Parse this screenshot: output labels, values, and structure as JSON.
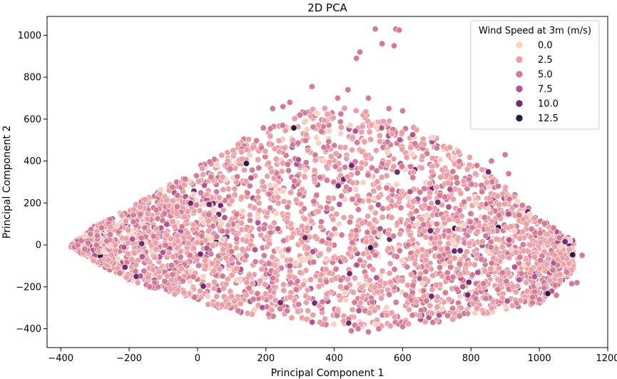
{
  "chart_data": {
    "type": "scatter",
    "title": "2D PCA",
    "xlabel": "Principal Component 1",
    "ylabel": "Principal Component 2",
    "xlim": [
      -440,
      1200
    ],
    "ylim": [
      -490,
      1090
    ],
    "x_ticks": [
      -400,
      -200,
      0,
      200,
      400,
      600,
      800,
      1000,
      1200
    ],
    "y_ticks": [
      -400,
      -200,
      0,
      200,
      400,
      600,
      800,
      1000
    ],
    "x_tick_labels": [
      "−400",
      "−200",
      "0",
      "200",
      "400",
      "600",
      "800",
      "1000",
      "1200"
    ],
    "y_tick_labels": [
      "−400",
      "−200",
      "0",
      "200",
      "400",
      "600",
      "800",
      "1000"
    ],
    "grid": false,
    "legend": {
      "title": "Wind Speed at 3m (m/s)",
      "placement": "top-right",
      "entries": [
        {
          "label": "0.0",
          "color": "#f7d2c4"
        },
        {
          "label": "2.5",
          "color": "#eaa0a6"
        },
        {
          "label": "5.0",
          "color": "#d47b97"
        },
        {
          "label": "7.5",
          "color": "#b0578f"
        },
        {
          "label": "10.0",
          "color": "#6d2c6e"
        },
        {
          "label": "12.5",
          "color": "#2c1a43"
        }
      ]
    },
    "hue_range": [
      0,
      12.5
    ],
    "color_scale": [
      "#f7d2c4",
      "#eaa0a6",
      "#d47b97",
      "#b0578f",
      "#6d2c6e",
      "#2c1a43"
    ],
    "series": [
      {
        "points": [
          [
            520,
            1030
          ],
          [
            580,
            1030
          ],
          [
            590,
            1025
          ],
          [
            540,
            960
          ],
          [
            575,
            950
          ],
          [
            475,
            920
          ],
          [
            465,
            890
          ],
          [
            335,
            755
          ],
          [
            440,
            740
          ],
          [
            500,
            700
          ],
          [
            560,
            650
          ],
          [
            600,
            640
          ],
          [
            1125,
            -50
          ],
          [
            1110,
            -180
          ],
          [
            1095,
            -185
          ],
          [
            1080,
            -130
          ],
          [
            860,
            400
          ],
          [
            900,
            430
          ],
          [
            910,
            340
          ],
          [
            880,
            280
          ],
          [
            -360,
            -10
          ],
          [
            -350,
            0
          ],
          [
            -340,
            20
          ],
          [
            -330,
            -20
          ],
          [
            -320,
            10
          ],
          [
            -150,
            -190
          ],
          [
            -140,
            -200
          ],
          [
            980,
            -250
          ],
          [
            1000,
            -260
          ],
          [
            1050,
            -240
          ],
          [
            470,
            -400
          ],
          [
            450,
            -410
          ],
          [
            500,
            -415
          ],
          [
            530,
            -400
          ],
          [
            600,
            -390
          ],
          [
            300,
            620
          ],
          [
            250,
            660
          ],
          [
            220,
            650
          ],
          [
            270,
            680
          ],
          [
            410,
            700
          ]
        ]
      }
    ],
    "envelope": {
      "x": [
        -370,
        -300,
        -200,
        -100,
        0,
        100,
        200,
        300,
        400,
        500,
        600,
        700,
        800,
        900,
        1000,
        1100
      ],
      "y_max": [
        0,
        90,
        180,
        270,
        370,
        470,
        570,
        640,
        660,
        640,
        580,
        520,
        420,
        280,
        130,
        20
      ],
      "y_min": [
        -10,
        -80,
        -170,
        -220,
        -270,
        -320,
        -345,
        -365,
        -390,
        -400,
        -390,
        -370,
        -340,
        -310,
        -280,
        -120
      ]
    },
    "hue_distribution": {
      "0.0": 0.08,
      "2.5": 0.55,
      "5.0": 0.3,
      "7.5": 0.05,
      "10.0": 0.015,
      "12.5": 0.005
    }
  }
}
